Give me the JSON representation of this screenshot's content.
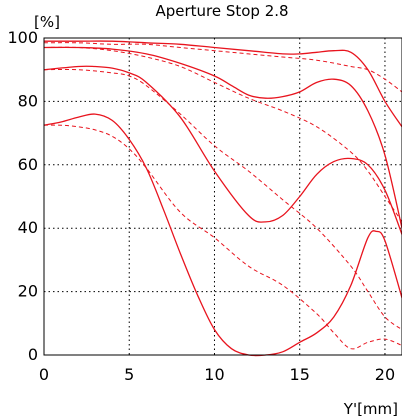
{
  "chart_data": {
    "type": "line",
    "title": "Aperture Stop 2.8",
    "ylabel": "[%]",
    "xlabel": "Y'[mm]",
    "xlim": [
      0,
      21
    ],
    "ylim": [
      0,
      100
    ],
    "xticks": [
      "0",
      "5",
      "10",
      "15",
      "20"
    ],
    "yticks": [
      "0",
      "20",
      "40",
      "60",
      "80",
      "100"
    ],
    "grid": true,
    "line_color": "#e8141e",
    "series": [
      {
        "style": "solid",
        "x": [
          0,
          2,
          4,
          6,
          8,
          10,
          12,
          14,
          15,
          16,
          17,
          18,
          19,
          20,
          21
        ],
        "y": [
          99,
          99,
          99,
          98.5,
          98,
          97,
          96,
          95,
          95,
          95.5,
          96,
          95.5,
          90,
          80,
          72
        ]
      },
      {
        "style": "dashed",
        "x": [
          0,
          2,
          4,
          6,
          8,
          10,
          12,
          14,
          16,
          18,
          19,
          20,
          21
        ],
        "y": [
          98.5,
          98.5,
          98,
          98,
          97,
          96,
          95,
          94,
          93,
          91,
          90,
          87,
          83
        ]
      },
      {
        "style": "solid",
        "x": [
          0,
          2,
          4,
          6,
          8,
          10,
          11,
          12,
          13,
          14,
          15,
          16,
          17,
          18,
          19,
          20,
          21
        ],
        "y": [
          97,
          97,
          96.5,
          95,
          92,
          88,
          85,
          82,
          81,
          81.5,
          83,
          86,
          87,
          85,
          77,
          63,
          40
        ]
      },
      {
        "style": "dashed",
        "x": [
          0,
          2,
          4,
          6,
          8,
          10,
          12,
          14,
          16,
          18,
          19,
          20,
          21
        ],
        "y": [
          97,
          97,
          96,
          94,
          91,
          86,
          81,
          77,
          72,
          64,
          58,
          50,
          42
        ]
      },
      {
        "style": "solid",
        "x": [
          0,
          2,
          3,
          4,
          5,
          6,
          8,
          10,
          12,
          13,
          14,
          15,
          16,
          17,
          18,
          19,
          20,
          21
        ],
        "y": [
          90,
          91,
          91,
          90.5,
          89,
          86,
          75,
          58,
          44,
          42,
          44,
          50,
          57,
          61,
          62,
          60,
          52,
          38
        ]
      },
      {
        "style": "dashed",
        "x": [
          0,
          2,
          4,
          5,
          6,
          8,
          10,
          12,
          14,
          16,
          18,
          19,
          20,
          21
        ],
        "y": [
          90,
          90,
          89,
          88,
          85,
          76,
          66,
          58,
          49,
          40,
          28,
          20,
          12,
          8
        ]
      },
      {
        "style": "solid",
        "x": [
          0,
          1,
          2,
          3,
          4,
          5,
          6,
          7,
          8,
          9,
          10,
          11,
          12,
          13,
          14,
          15,
          16,
          17,
          18,
          19,
          19.5,
          20,
          21
        ],
        "y": [
          72.5,
          73.5,
          75,
          76,
          74,
          68,
          59,
          46,
          32,
          19,
          8,
          2,
          0,
          0,
          1,
          4,
          7,
          12,
          22,
          37,
          39,
          36,
          18
        ]
      },
      {
        "style": "dashed",
        "x": [
          0,
          1,
          2,
          3,
          4,
          5,
          6,
          8,
          10,
          12,
          14,
          16,
          17,
          18,
          19,
          20,
          21
        ],
        "y": [
          72.5,
          72.5,
          72,
          71,
          69,
          65,
          59,
          45,
          37,
          28,
          22,
          13,
          7,
          2,
          4,
          5,
          3
        ]
      }
    ]
  }
}
